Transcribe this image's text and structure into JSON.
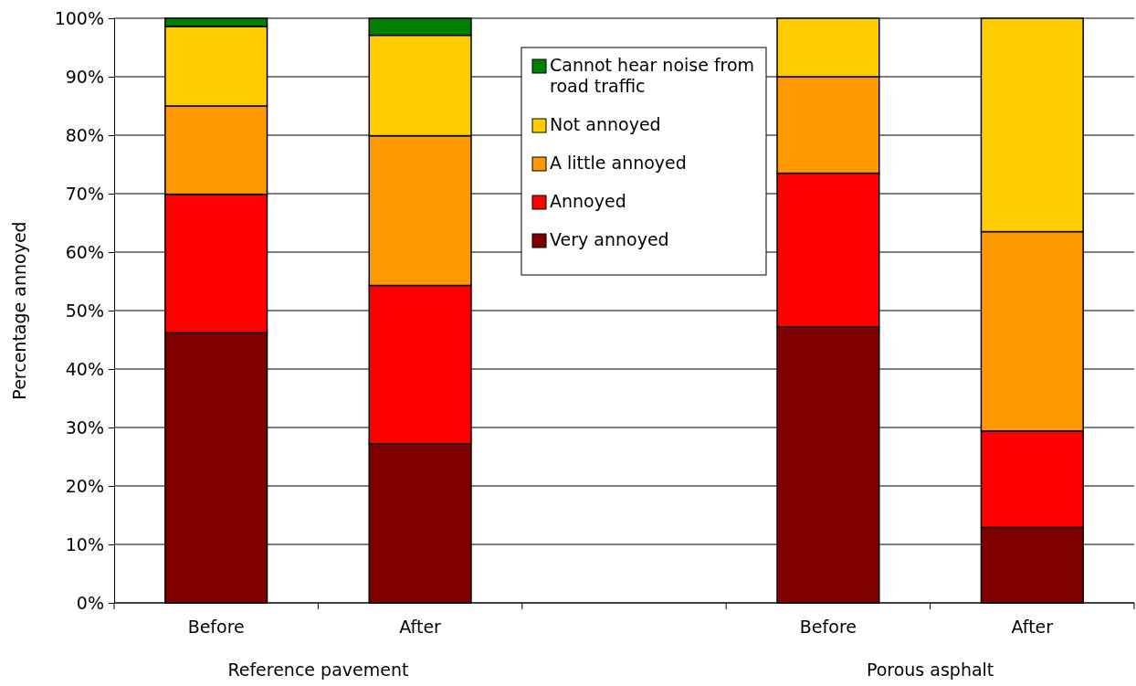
{
  "chart_data": {
    "type": "bar",
    "stacked": true,
    "ylabel": "Percentage annoyed",
    "categories": [
      "Before",
      "After",
      null,
      "Before",
      "After"
    ],
    "annotations": [
      "Reference pavement",
      "Porous asphalt"
    ],
    "series": [
      {
        "name": "Very annoyed",
        "color": "#800000",
        "values": [
          46.2,
          27.2,
          null,
          47.2,
          12.9
        ]
      },
      {
        "name": "Annoyed",
        "color": "#ff0000",
        "values": [
          23.7,
          27.1,
          null,
          26.3,
          16.5
        ]
      },
      {
        "name": "A little annoyed",
        "color": "#ff9900",
        "values": [
          15.1,
          25.6,
          null,
          16.5,
          34.1
        ]
      },
      {
        "name": "Not annoyed",
        "color": "#ffcc00",
        "values": [
          13.6,
          17.2,
          null,
          10.0,
          36.5
        ]
      },
      {
        "name": "Cannot hear noise from road traffic",
        "color": "#008000",
        "values": [
          1.4,
          2.9,
          null,
          0,
          0
        ]
      }
    ],
    "ylim": [
      0,
      100
    ],
    "yticks": [
      {
        "value": 0,
        "label": "0%"
      },
      {
        "value": 10,
        "label": "10%"
      },
      {
        "value": 20,
        "label": "20%"
      },
      {
        "value": 30,
        "label": "30%"
      },
      {
        "value": 40,
        "label": "40%"
      },
      {
        "value": 50,
        "label": "50%"
      },
      {
        "value": 60,
        "label": "60%"
      },
      {
        "value": 70,
        "label": "70%"
      },
      {
        "value": 80,
        "label": "80%"
      },
      {
        "value": 90,
        "label": "90%"
      },
      {
        "value": 100,
        "label": "100%"
      }
    ],
    "grid": "y",
    "legend": "top"
  }
}
